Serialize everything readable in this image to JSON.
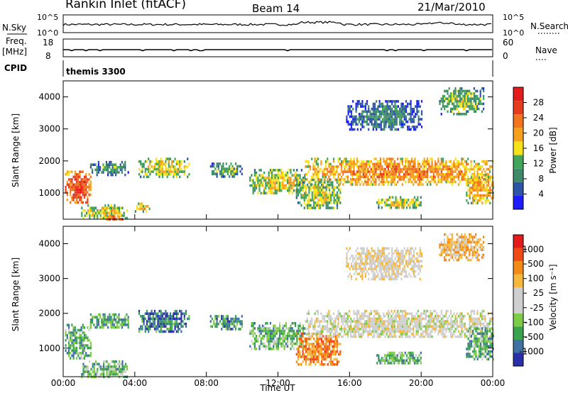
{
  "header": {
    "title": "Rankin Inlet (fitACF)",
    "beam": "Beam 14",
    "date": "21/Mar/2010"
  },
  "noise_panel": {
    "left_label": "N.Sky",
    "right_label": "N.Search",
    "left_ticks": [
      "10^5",
      "10^0"
    ],
    "right_ticks": [
      "10^5",
      "10^0"
    ]
  },
  "freq_panel": {
    "left_label": "Freq.",
    "left_unit": "[MHz]",
    "right_label": "Nave",
    "left_ticks": [
      "18",
      "8"
    ],
    "right_ticks": [
      "60",
      "0"
    ]
  },
  "cpid_panel": {
    "label": "CPID",
    "program": "themis 3300"
  },
  "colors": {
    "power_scale": [
      "#1c1cff",
      "#2e54a6",
      "#3f8a6a",
      "#41a65a",
      "#f7e21a",
      "#f6a11e",
      "#f2741e",
      "#e53d1d",
      "#e41b1b"
    ],
    "velocity_scale": [
      "#e41b1b",
      "#f04a16",
      "#f38a18",
      "#f6b83c",
      "#cfcfcf",
      "#cfcfcf",
      "#7dcc47",
      "#3aa34f",
      "#3f71a2",
      "#2b2fa7"
    ]
  },
  "chart_data": [
    {
      "type": "heatmap",
      "panel": "power",
      "ylabel": "Slant Range [km]",
      "ylim": [
        180,
        4500
      ],
      "yticks": [
        "1000",
        "2000",
        "3000",
        "4000"
      ],
      "xlim_hours": [
        0,
        24
      ],
      "colorbar_label": "Power [dB]",
      "colorbar_ticks": [
        "28",
        "24",
        "20",
        "16",
        "12",
        "8",
        "4"
      ],
      "colorbar_range": [
        0,
        32
      ],
      "regions": [
        {
          "t0": 0.1,
          "t1": 1.5,
          "r0": 700,
          "r1": 1700,
          "level": 0.85
        },
        {
          "t0": 1.0,
          "t1": 3.6,
          "r0": 200,
          "r1": 650,
          "level": 0.55
        },
        {
          "t0": 2.4,
          "t1": 3.3,
          "r0": 180,
          "r1": 300,
          "level": 0.9
        },
        {
          "t0": 1.5,
          "t1": 3.6,
          "r0": 1600,
          "r1": 2000,
          "level": 0.35
        },
        {
          "t0": 4.2,
          "t1": 7.0,
          "r0": 1500,
          "r1": 2100,
          "level": 0.55
        },
        {
          "t0": 4.0,
          "t1": 4.8,
          "r0": 450,
          "r1": 700,
          "level": 0.6
        },
        {
          "t0": 8.2,
          "t1": 10.0,
          "r0": 1550,
          "r1": 1950,
          "level": 0.4
        },
        {
          "t0": 10.4,
          "t1": 13.5,
          "r0": 1000,
          "r1": 1750,
          "level": 0.55
        },
        {
          "t0": 13.0,
          "t1": 15.5,
          "r0": 500,
          "r1": 1450,
          "level": 0.5
        },
        {
          "t0": 13.5,
          "t1": 24.0,
          "r0": 1300,
          "r1": 2100,
          "level": 0.7
        },
        {
          "t0": 17.5,
          "t1": 20.0,
          "r0": 550,
          "r1": 900,
          "level": 0.55
        },
        {
          "t0": 15.8,
          "t1": 20.0,
          "r0": 3000,
          "r1": 3900,
          "level": 0.3
        },
        {
          "t0": 21.0,
          "t1": 23.5,
          "r0": 3500,
          "r1": 4300,
          "level": 0.45
        },
        {
          "t0": 22.5,
          "t1": 24.0,
          "r0": 700,
          "r1": 1600,
          "level": 0.65
        }
      ]
    },
    {
      "type": "heatmap",
      "panel": "velocity",
      "ylabel": "Slant Range [km]",
      "xlabel": "Time UT",
      "ylim": [
        180,
        4500
      ],
      "yticks": [
        "1000",
        "2000",
        "3000",
        "4000"
      ],
      "xticks": [
        "00:00",
        "04:00",
        "08:00",
        "12:00",
        "16:00",
        "20:00",
        "00:00"
      ],
      "xlim_hours": [
        0,
        24
      ],
      "colorbar_label": "Velocity [m s⁻¹]",
      "colorbar_ticks": [
        "1000",
        "500",
        "100",
        "25",
        "-25",
        "-100",
        "-500",
        "-1000"
      ],
      "regions": [
        {
          "t0": 0.1,
          "t1": 1.5,
          "r0": 700,
          "r1": 1700,
          "level": 0.72
        },
        {
          "t0": 1.0,
          "t1": 3.6,
          "r0": 200,
          "r1": 650,
          "level": 0.68
        },
        {
          "t0": 1.5,
          "t1": 3.6,
          "r0": 1600,
          "r1": 2000,
          "level": 0.75
        },
        {
          "t0": 4.2,
          "t1": 7.0,
          "r0": 1500,
          "r1": 2100,
          "level": 0.82
        },
        {
          "t0": 8.2,
          "t1": 10.0,
          "r0": 1550,
          "r1": 1950,
          "level": 0.78
        },
        {
          "t0": 10.4,
          "t1": 13.5,
          "r0": 1000,
          "r1": 1750,
          "level": 0.7
        },
        {
          "t0": 13.0,
          "t1": 15.5,
          "r0": 500,
          "r1": 1450,
          "level": 0.25
        },
        {
          "t0": 13.5,
          "t1": 24.0,
          "r0": 1300,
          "r1": 2100,
          "level": 0.5
        },
        {
          "t0": 17.5,
          "t1": 20.0,
          "r0": 550,
          "r1": 900,
          "level": 0.7
        },
        {
          "t0": 15.8,
          "t1": 20.0,
          "r0": 3000,
          "r1": 3900,
          "level": 0.45
        },
        {
          "t0": 21.0,
          "t1": 23.5,
          "r0": 3500,
          "r1": 4300,
          "level": 0.35
        },
        {
          "t0": 22.5,
          "t1": 24.0,
          "r0": 700,
          "r1": 1600,
          "level": 0.72
        }
      ]
    }
  ]
}
